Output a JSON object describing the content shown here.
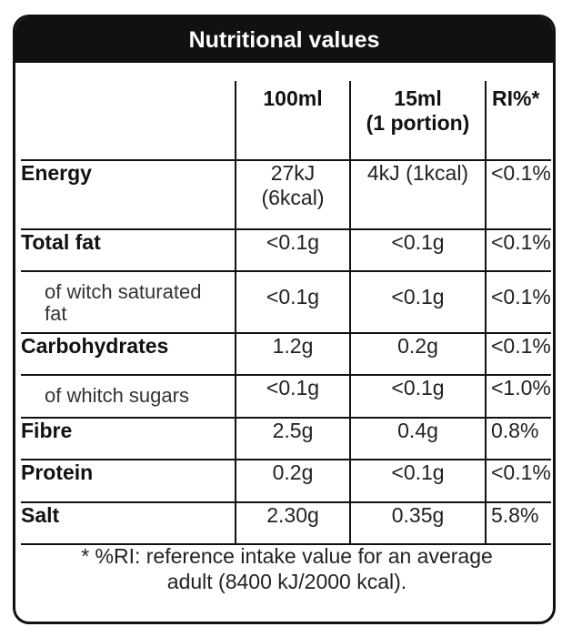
{
  "title": "Nutritional values",
  "columns": {
    "col1_line1": "100ml",
    "col2_line1": "15ml",
    "col2_line2": "(1 portion)",
    "col3": "RI%*"
  },
  "rows": [
    {
      "name": "Energy",
      "v100_line1": "27kJ",
      "v100_line2": "(6kcal)",
      "portion": "4kJ (1kcal)",
      "ri": "<0.1%"
    },
    {
      "name": "Total fat",
      "v100": "<0.1g",
      "portion": "<0.1g",
      "ri": "<0.1%"
    },
    {
      "name_line1": "of witch saturated",
      "name_line2": "fat",
      "v100": "<0.1g",
      "portion": "<0.1g",
      "ri": "<0.1%"
    },
    {
      "name": "Carbohydrates",
      "v100": "1.2g",
      "portion": "0.2g",
      "ri": "<0.1%"
    },
    {
      "name": "of whitch sugars",
      "v100": "<0.1g",
      "portion": "<0.1g",
      "ri": "<1.0%"
    },
    {
      "name": "Fibre",
      "v100": "2.5g",
      "portion": "0.4g",
      "ri": "0.8%"
    },
    {
      "name": "Protein",
      "v100": "0.2g",
      "portion": "<0.1g",
      "ri": "<0.1%"
    },
    {
      "name": "Salt",
      "v100": "2.30g",
      "portion": "0.35g",
      "ri": "5.8%"
    }
  ],
  "footnote": {
    "line1": "* %RI: reference intake value for an average",
    "line2": "adult (8400 kJ/2000 kcal)."
  }
}
